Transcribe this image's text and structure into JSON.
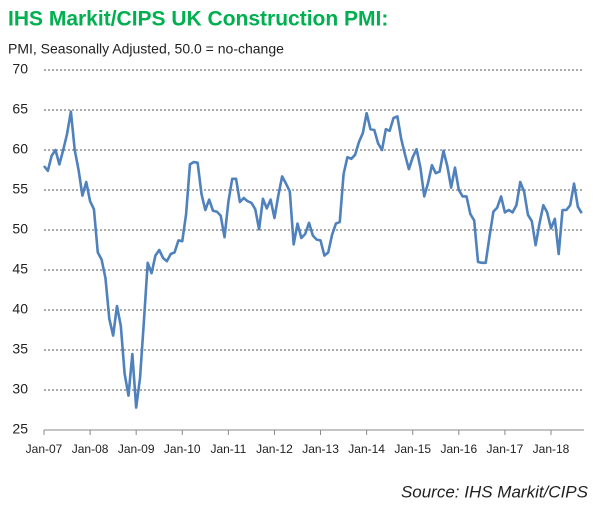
{
  "chart_data": {
    "type": "line",
    "title": "IHS Markit/CIPS UK Construction PMI:",
    "subtitle": "PMI, Seasonally Adjusted, 50.0 = no-change",
    "source": "Source: IHS Markit/CIPS",
    "categories": [
      "Jan-07",
      null,
      null,
      null,
      null,
      null,
      null,
      null,
      null,
      null,
      null,
      null,
      "Jan-08",
      null,
      null,
      null,
      null,
      null,
      null,
      null,
      null,
      null,
      null,
      null,
      "Jan-09",
      null,
      null,
      null,
      null,
      null,
      null,
      null,
      null,
      null,
      null,
      null,
      "Jan-10",
      null,
      null,
      null,
      null,
      null,
      null,
      null,
      null,
      null,
      null,
      null,
      "Jan-11",
      null,
      null,
      null,
      null,
      null,
      null,
      null,
      null,
      null,
      null,
      null,
      "Jan-12",
      null,
      null,
      null,
      null,
      null,
      null,
      null,
      null,
      null,
      null,
      null,
      "Jan-13",
      null,
      null,
      null,
      null,
      null,
      null,
      null,
      null,
      null,
      null,
      null,
      "Jan-14",
      null,
      null,
      null,
      null,
      null,
      null,
      null,
      null,
      null,
      null,
      null,
      "Jan-15",
      null,
      null,
      null,
      null,
      null,
      null,
      null,
      null,
      null,
      null,
      null,
      "Jan-16",
      null,
      null,
      null,
      null,
      null,
      null,
      null,
      null,
      null,
      null,
      null,
      "Jan-17",
      null,
      null,
      null,
      null,
      null,
      null,
      null,
      null,
      null,
      null,
      null,
      "Jan-18",
      null,
      null,
      null,
      null,
      null,
      null,
      null,
      null
    ],
    "values": [
      58.0,
      57.4,
      59.3,
      60.0,
      58.2,
      60.0,
      62.0,
      64.8,
      60.0,
      57.5,
      54.3,
      56.0,
      53.6,
      52.6,
      47.2,
      46.3,
      44.0,
      38.9,
      36.8,
      40.5,
      38.0,
      32.0,
      29.3,
      34.5,
      27.8,
      31.5,
      38.5,
      45.9,
      44.6,
      46.8,
      47.5,
      46.5,
      46.1,
      47.0,
      47.2,
      48.7,
      48.6,
      52.0,
      58.2,
      58.5,
      58.4,
      54.5,
      52.5,
      53.8,
      52.4,
      52.3,
      51.8,
      49.1,
      53.5,
      56.4,
      56.4,
      53.5,
      54.0,
      53.6,
      53.4,
      52.6,
      50.1,
      53.9,
      52.7,
      53.8,
      51.5,
      54.3,
      56.7,
      55.8,
      54.8,
      48.2,
      50.8,
      49.0,
      49.5,
      50.9,
      49.3,
      48.8,
      48.7,
      46.8,
      47.2,
      49.4,
      50.8,
      51.0,
      57.0,
      59.1,
      58.9,
      59.4,
      61.0,
      62.1,
      64.6,
      62.6,
      62.5,
      60.8,
      60.0,
      62.6,
      62.4,
      64.0,
      64.2,
      61.4,
      59.4,
      57.6,
      59.1,
      60.1,
      57.8,
      54.2,
      55.9,
      58.1,
      57.1,
      57.3,
      59.9,
      58.0,
      55.3,
      57.8,
      55.0,
      54.2,
      54.2,
      52.0,
      51.2,
      46.0,
      45.9,
      45.9,
      49.2,
      52.3,
      52.8,
      54.2,
      52.2,
      52.5,
      52.2,
      53.1,
      56.0,
      54.8,
      51.9,
      51.1,
      48.1,
      50.8,
      53.1,
      52.2,
      50.2,
      51.4,
      47.0,
      52.5,
      52.5,
      53.1,
      55.8,
      52.9,
      52.1
    ],
    "color": "#4f81bd",
    "title_color": "#00b050",
    "ylim": [
      25,
      70
    ],
    "yticks": [
      25,
      30,
      35,
      40,
      45,
      50,
      55,
      60,
      65,
      70
    ],
    "grid": true
  }
}
